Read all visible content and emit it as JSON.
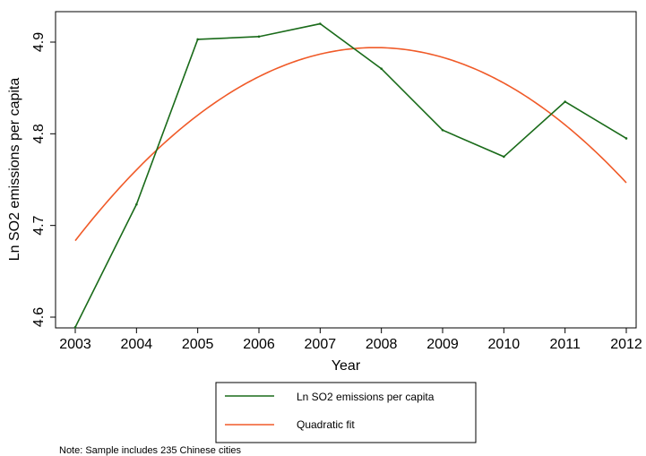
{
  "chart_data": {
    "type": "line",
    "xlabel": "Year",
    "ylabel": "Ln SO2 emissions per capita",
    "x": [
      2003,
      2004,
      2005,
      2006,
      2007,
      2008,
      2009,
      2010,
      2011,
      2012
    ],
    "xlim": [
      2003,
      2012
    ],
    "ylim": [
      4.6,
      4.9
    ],
    "xticks": [
      "2003",
      "2004",
      "2005",
      "2006",
      "2007",
      "2008",
      "2009",
      "2010",
      "2011",
      "2012"
    ],
    "yticks": [
      "4.6",
      "4.7",
      "4.8",
      "4.9"
    ],
    "series": [
      {
        "name": "Ln SO2 emissions per capita",
        "color": "#1a6b1a",
        "values": [
          4.589,
          4.723,
          4.903,
          4.906,
          4.92,
          4.871,
          4.804,
          4.775,
          4.835,
          4.795
        ]
      },
      {
        "name": "Quadratic fit",
        "color": "#f05a28",
        "quadratic_fit": {
          "vertex_x": 2007.9,
          "vertex_y": 4.894,
          "curvature": -0.00877
        },
        "values": [
          4.683,
          4.761,
          4.821,
          4.864,
          4.887,
          4.894,
          4.882,
          4.852,
          4.805,
          4.74
        ]
      }
    ],
    "legend": {
      "placement": "bottom"
    },
    "grid": false,
    "note": "Note: Sample includes 235 Chinese cities"
  }
}
